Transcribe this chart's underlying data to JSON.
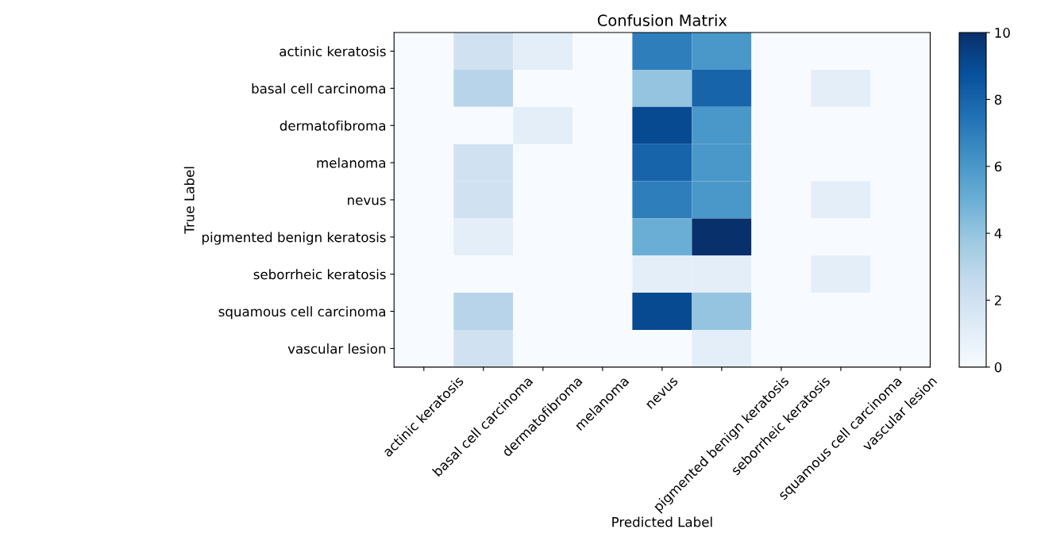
{
  "chart_data": {
    "type": "heatmap",
    "title": "Confusion Matrix",
    "xlabel": "Predicted Label",
    "ylabel": "True Label",
    "categories": [
      "actinic keratosis",
      "basal cell carcinoma",
      "dermatofibroma",
      "melanoma",
      "nevus",
      "pigmented benign keratosis",
      "seborrheic keratosis",
      "squamous cell carcinoma",
      "vascular lesion"
    ],
    "y_categories": [
      "actinic keratosis",
      "basal cell carcinoma",
      "dermatofibroma",
      "melanoma",
      "nevus",
      "pigmented benign keratosis",
      "seborrheic keratosis",
      "squamous cell carcinoma",
      "vascular lesion"
    ],
    "cells": [
      [
        0,
        2,
        1,
        0,
        7,
        6,
        0,
        0,
        0
      ],
      [
        0,
        3,
        0,
        0,
        4,
        8,
        0,
        1,
        0
      ],
      [
        0,
        0,
        1,
        0,
        9,
        6,
        0,
        0,
        0
      ],
      [
        0,
        2,
        0,
        0,
        8,
        6,
        0,
        0,
        0
      ],
      [
        0,
        2,
        0,
        0,
        7,
        6,
        0,
        1,
        0
      ],
      [
        0,
        1,
        0,
        0,
        5,
        10,
        0,
        0,
        0
      ],
      [
        0,
        0,
        0,
        0,
        1,
        1,
        0,
        1,
        0
      ],
      [
        0,
        3,
        0,
        0,
        9,
        4,
        0,
        0,
        0
      ],
      [
        0,
        2,
        0,
        0,
        0,
        1,
        0,
        0,
        0
      ]
    ],
    "clim": [
      0,
      10
    ],
    "cticks": [
      0,
      2,
      4,
      6,
      8,
      10
    ]
  }
}
